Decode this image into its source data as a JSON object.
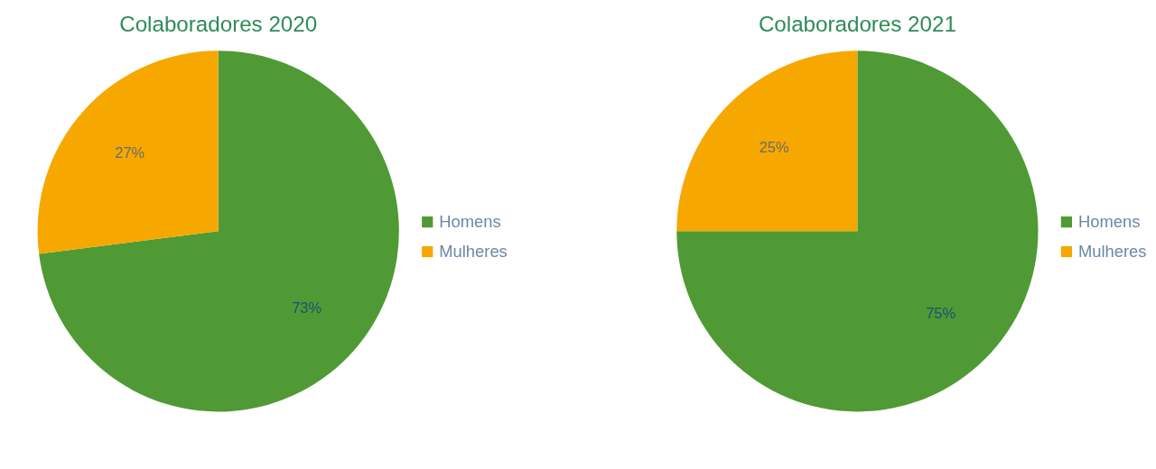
{
  "chart_data": [
    {
      "type": "pie",
      "title": "Colaboradores 2020",
      "categories": [
        "Homens",
        "Mulheres"
      ],
      "values": [
        73,
        27
      ],
      "colors": [
        "#4f9a34",
        "#f6a800"
      ],
      "value_labels": [
        "73%",
        "27%"
      ],
      "legend": "right"
    },
    {
      "type": "pie",
      "title": "Colaboradores 2021",
      "categories": [
        "Homens",
        "Mulheres"
      ],
      "values": [
        75,
        25
      ],
      "colors": [
        "#4f9a34",
        "#f6a800"
      ],
      "value_labels": [
        "75%",
        "25%"
      ],
      "legend": "right"
    }
  ]
}
